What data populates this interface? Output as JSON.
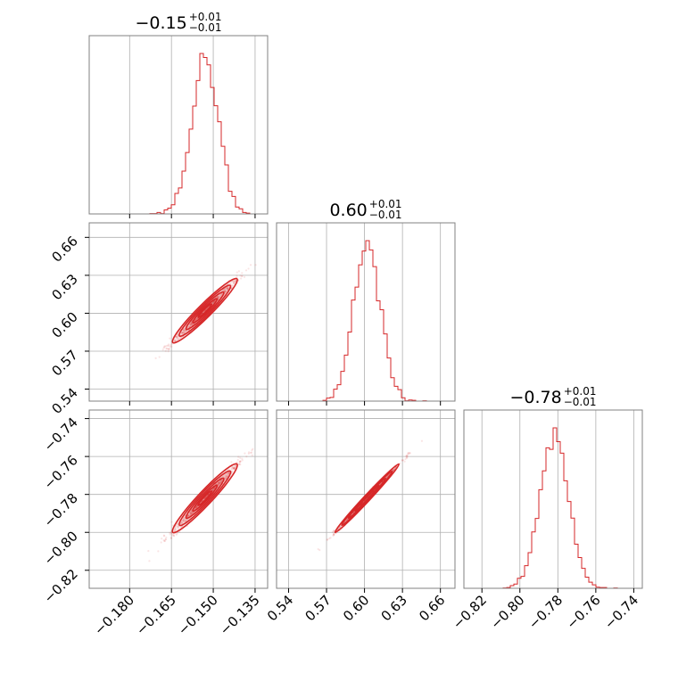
{
  "chart_data": {
    "type": "corner",
    "grid": true,
    "color": "#d62728",
    "parameters": [
      {
        "title": {
          "median": "−0.15",
          "plus": "+0.01",
          "minus": "−0.01"
        },
        "ticks": [
          -0.18,
          -0.165,
          -0.15,
          -0.135
        ],
        "tick_labels": [
          "−0.180",
          "−0.165",
          "−0.150",
          "−0.135"
        ],
        "range": [
          -0.1945,
          -0.1305
        ],
        "mean": -0.153,
        "sd": 0.0048
      },
      {
        "title": {
          "median": "0.60",
          "plus": "+0.01",
          "minus": "−0.01"
        },
        "ticks": [
          0.54,
          0.57,
          0.6,
          0.63,
          0.66
        ],
        "tick_labels": [
          "0.54",
          "0.57",
          "0.60",
          "0.63",
          "0.66"
        ],
        "range": [
          0.5305,
          0.6715
        ],
        "mean": 0.602,
        "sd": 0.0105
      },
      {
        "title": {
          "median": "−0.78",
          "plus": "+0.01",
          "minus": "−0.01"
        },
        "ticks": [
          -0.82,
          -0.8,
          -0.78,
          -0.76,
          -0.74
        ],
        "tick_labels": [
          "−0.82",
          "−0.80",
          "−0.78",
          "−0.76",
          "−0.74"
        ],
        "range": [
          -0.8295,
          -0.7355
        ],
        "mean": -0.782,
        "sd": 0.0075
      }
    ],
    "panels": [
      {
        "kind": "hist",
        "row": 0,
        "col": 0
      },
      {
        "kind": "hist",
        "row": 1,
        "col": 1
      },
      {
        "kind": "hist",
        "row": 2,
        "col": 2
      },
      {
        "kind": "scatter2d",
        "row": 1,
        "col": 0,
        "x_param": 0,
        "y_param": 1,
        "corr": 0.985
      },
      {
        "kind": "scatter2d",
        "row": 2,
        "col": 0,
        "x_param": 0,
        "y_param": 2,
        "corr": 0.985
      },
      {
        "kind": "scatter2d",
        "row": 2,
        "col": 1,
        "x_param": 1,
        "y_param": 2,
        "corr": 0.997
      }
    ]
  }
}
